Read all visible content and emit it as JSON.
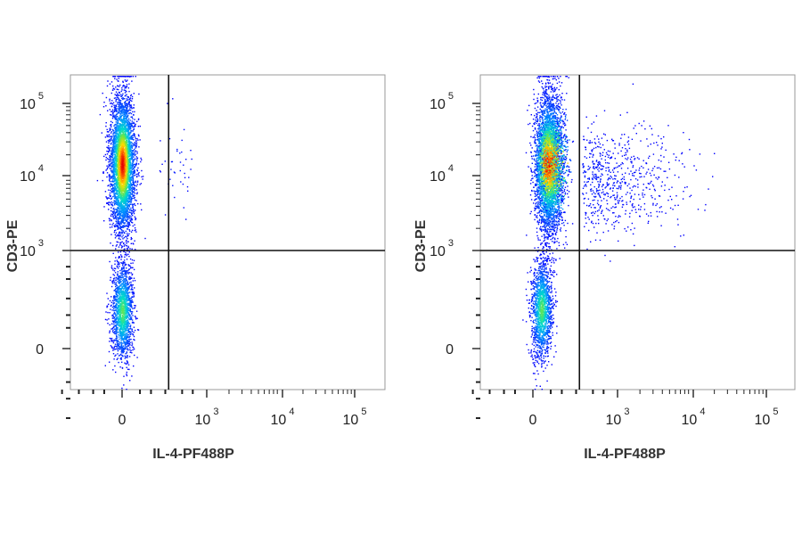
{
  "chart_data": [
    {
      "type": "scatter",
      "subtype": "flow-cytometry-density-dot-plot",
      "title": "",
      "xlabel": "IL-4-PF488P",
      "ylabel": "CD3-PE",
      "x_scale": "biexponential",
      "y_scale": "biexponential",
      "x_ticks": [
        {
          "value": 0,
          "base": "0",
          "exp": ""
        },
        {
          "value": 1000,
          "base": "10",
          "exp": "3"
        },
        {
          "value": 10000,
          "base": "10",
          "exp": "4"
        },
        {
          "value": 100000,
          "base": "10",
          "exp": "5"
        }
      ],
      "y_ticks": [
        {
          "value": 0,
          "base": "0",
          "exp": ""
        },
        {
          "value": 1000,
          "base": "10",
          "exp": "3"
        },
        {
          "value": 10000,
          "base": "10",
          "exp": "4"
        },
        {
          "value": 100000,
          "base": "10",
          "exp": "5"
        }
      ],
      "quadrant_gate": {
        "x": 400,
        "y": 1000
      },
      "grid": false,
      "legend": "none",
      "populations": [
        {
          "name_hint": "CD3+ IL-4-",
          "x_center": 0,
          "y_center": 15000,
          "count": 4200,
          "peak_color": "#e01010"
        },
        {
          "name_hint": "CD3- IL-4-",
          "x_center": 0,
          "y_center": 120,
          "count": 1600,
          "peak_color": "#10b8d0"
        },
        {
          "name_hint": "CD3+ IL-4+",
          "x_center": 300,
          "y_center": 15000,
          "count": 40,
          "peak_color": "#1030f0"
        }
      ]
    },
    {
      "type": "scatter",
      "subtype": "flow-cytometry-density-dot-plot",
      "title": "",
      "xlabel": "IL-4-PF488P",
      "ylabel": "CD3-PE",
      "x_scale": "biexponential",
      "y_scale": "biexponential",
      "x_ticks": [
        {
          "value": 0,
          "base": "0",
          "exp": ""
        },
        {
          "value": 1000,
          "base": "10",
          "exp": "3"
        },
        {
          "value": 10000,
          "base": "10",
          "exp": "4"
        },
        {
          "value": 100000,
          "base": "10",
          "exp": "5"
        }
      ],
      "y_ticks": [
        {
          "value": 0,
          "base": "0",
          "exp": ""
        },
        {
          "value": 1000,
          "base": "10",
          "exp": "3"
        },
        {
          "value": 10000,
          "base": "10",
          "exp": "4"
        },
        {
          "value": 100000,
          "base": "10",
          "exp": "5"
        }
      ],
      "quadrant_gate": {
        "x": 400,
        "y": 1000
      },
      "grid": false,
      "legend": "none",
      "populations": [
        {
          "name_hint": "CD3+ IL-4-",
          "x_center": 30,
          "y_center": 15000,
          "count": 4800,
          "peak_color": "#e01010"
        },
        {
          "name_hint": "CD3- IL-4-",
          "x_center": 20,
          "y_center": 130,
          "count": 1500,
          "peak_color": "#10b8d0"
        },
        {
          "name_hint": "CD3+ IL-4+",
          "x_center": 2500,
          "y_center": 9000,
          "count": 650,
          "peak_color": "#1030f0"
        }
      ]
    }
  ]
}
